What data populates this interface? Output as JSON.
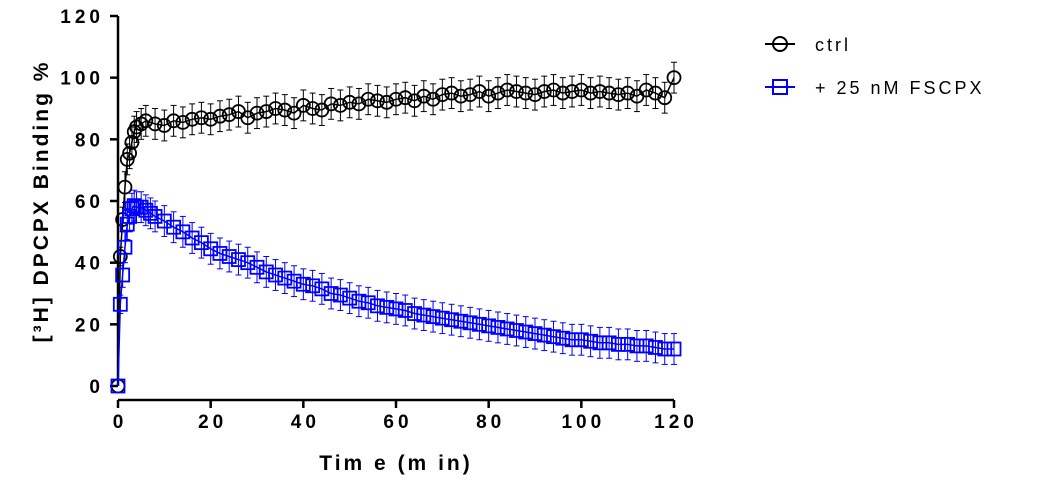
{
  "chart_data": {
    "type": "scatter",
    "xlabel": "Tim e (m in)",
    "ylabel": "[³H] DPCPX Binding %",
    "xlim": [
      0,
      120
    ],
    "ylim": [
      0,
      120
    ],
    "xticks": [
      0,
      20,
      40,
      60,
      80,
      100,
      120
    ],
    "yticks": [
      0,
      20,
      40,
      60,
      80,
      100,
      120
    ],
    "x_tick_labels": [
      "0",
      "20",
      "40",
      "60",
      "80",
      "100",
      "120"
    ],
    "y_tick_labels": [
      "0",
      "20",
      "40",
      "60",
      "80",
      "100",
      "120"
    ],
    "legend_position": "top-right",
    "series": [
      {
        "name": "ctrl",
        "color": "#000000",
        "marker": "circle",
        "x": [
          0,
          0.5,
          1,
          1.5,
          2,
          2.5,
          3,
          3.5,
          4,
          5,
          6,
          8,
          10,
          12,
          14,
          16,
          18,
          20,
          22,
          24,
          26,
          28,
          30,
          32,
          34,
          36,
          38,
          40,
          42,
          44,
          46,
          48,
          50,
          52,
          54,
          56,
          58,
          60,
          62,
          64,
          66,
          68,
          70,
          72,
          74,
          76,
          78,
          80,
          82,
          84,
          86,
          88,
          90,
          92,
          94,
          96,
          98,
          100,
          102,
          104,
          106,
          108,
          110,
          112,
          114,
          116,
          118,
          120
        ],
        "y": [
          0,
          42,
          54,
          64.5,
          73.5,
          75.5,
          79,
          82.5,
          84,
          85,
          86,
          85,
          84.5,
          86,
          85.5,
          86.5,
          87,
          86.5,
          87.5,
          88,
          89,
          87,
          88.5,
          89,
          90,
          89.5,
          88.5,
          91,
          90,
          89.5,
          91.5,
          91,
          92,
          91.5,
          93,
          92.5,
          92,
          93,
          93.5,
          92.5,
          94,
          93,
          94.5,
          95,
          94,
          94.5,
          95.5,
          94,
          95,
          96,
          95.5,
          95,
          94.5,
          95.5,
          96,
          95,
          95.5,
          96,
          95,
          95.5,
          95,
          94.5,
          95,
          94,
          96,
          95,
          93.5,
          100
        ],
        "error": [
          0,
          3,
          4,
          5,
          5,
          5,
          5,
          5,
          5,
          5,
          5,
          5,
          5,
          5,
          5,
          5,
          5,
          5,
          5,
          5,
          5,
          5,
          5,
          5,
          5,
          5,
          5,
          5,
          5,
          5,
          5,
          5,
          5,
          5,
          5,
          5,
          5,
          5,
          5,
          5,
          5,
          5,
          5,
          5,
          5,
          5,
          5,
          5,
          5,
          5,
          5,
          5,
          5,
          5,
          5,
          5,
          5,
          5,
          5,
          5,
          5,
          5,
          5,
          5,
          5,
          5,
          5,
          5
        ]
      },
      {
        "name": "+ 25 nM FSCPX",
        "color": "#0000ff",
        "marker": "square",
        "x": [
          0,
          0.5,
          1,
          1.5,
          2,
          2.5,
          3,
          3.5,
          4,
          5,
          6,
          7,
          8,
          10,
          12,
          14,
          16,
          18,
          20,
          22,
          24,
          26,
          28,
          30,
          32,
          34,
          36,
          38,
          40,
          42,
          44,
          46,
          48,
          50,
          52,
          54,
          56,
          58,
          60,
          62,
          64,
          66,
          68,
          70,
          72,
          74,
          76,
          78,
          80,
          82,
          84,
          86,
          88,
          90,
          92,
          94,
          96,
          98,
          100,
          102,
          104,
          106,
          108,
          110,
          112,
          114,
          116,
          118,
          120
        ],
        "y": [
          0,
          26.5,
          36,
          45,
          52.5,
          55,
          57.5,
          58.5,
          58,
          58,
          57,
          56,
          55,
          53.5,
          51.5,
          50,
          48,
          46.5,
          44.5,
          43,
          42,
          41,
          40,
          38.5,
          37,
          36,
          35,
          34,
          33,
          32.5,
          31.5,
          30,
          29.5,
          28.5,
          27.5,
          27,
          26,
          25.5,
          25,
          24.5,
          23.5,
          23,
          22.5,
          22,
          21.5,
          21,
          20.5,
          20,
          19.5,
          19,
          18.5,
          18,
          17.5,
          17,
          16.5,
          16,
          15.5,
          15,
          15,
          14.5,
          14,
          14,
          13.5,
          13.5,
          13,
          13,
          12.5,
          12,
          12
        ],
        "error": [
          0,
          3,
          4,
          5,
          5,
          5,
          5,
          5,
          5,
          5,
          5,
          5,
          5,
          5,
          5,
          5,
          5,
          5,
          5,
          5,
          5,
          5,
          5,
          5,
          5,
          5,
          5,
          5,
          5,
          5,
          5,
          5,
          5,
          5,
          5,
          5,
          5,
          5,
          5,
          5,
          5,
          5,
          5,
          5,
          5,
          5,
          5,
          5,
          5,
          5,
          5,
          5,
          5,
          5,
          5,
          5,
          5,
          5,
          5,
          5,
          5,
          5,
          5,
          5,
          5,
          5,
          5,
          5,
          5
        ]
      }
    ]
  }
}
